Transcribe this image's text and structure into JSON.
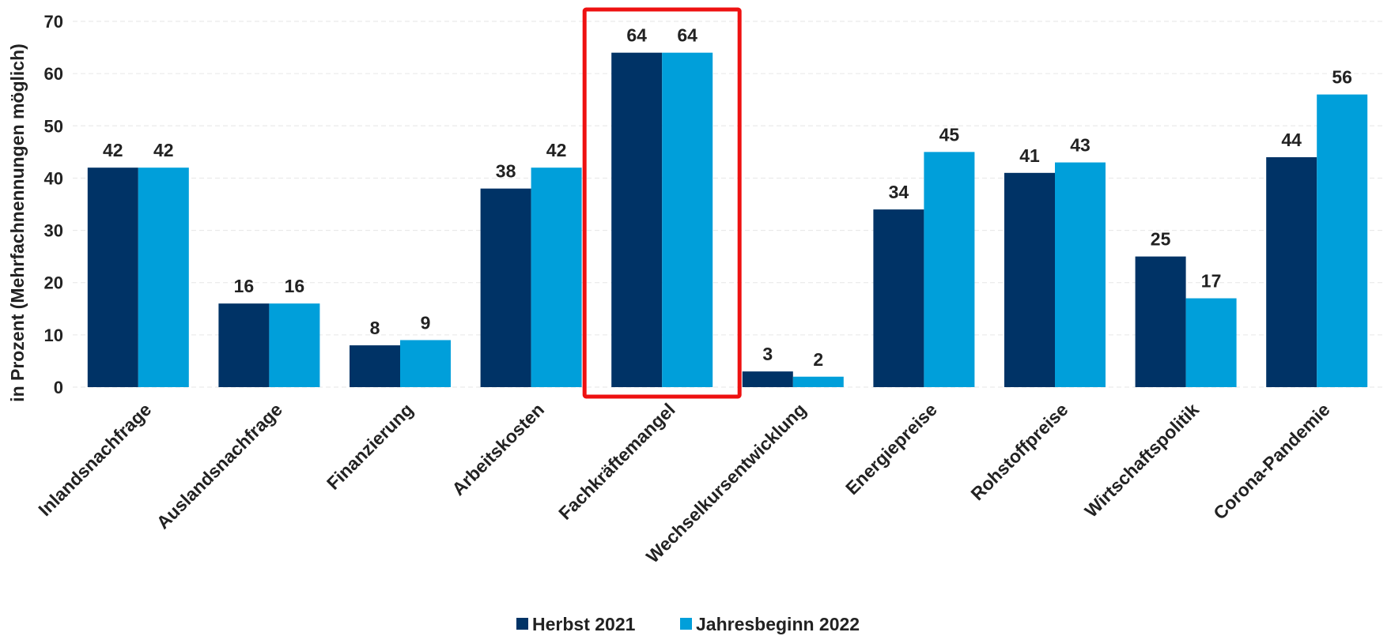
{
  "chart_data": {
    "type": "bar",
    "title": "",
    "xlabel": "",
    "ylabel": "in Prozent (Mehrfachnennungen möglich)",
    "ylim": [
      0,
      70
    ],
    "yticks": [
      0,
      10,
      20,
      30,
      40,
      50,
      60,
      70
    ],
    "grid": true,
    "legend_position": "bottom",
    "categories": [
      "Inlandsnachfrage",
      "Auslandsnachfrage",
      "Finanzierung",
      "Arbeitskosten",
      "Fachkräftemangel",
      "Wechselkursentwicklung",
      "Energiepreise",
      "Rohstoffpreise",
      "Wirtschaftspolitik",
      "Corona-Pandemie"
    ],
    "series": [
      {
        "name": "Herbst 2021",
        "color": "#003366",
        "values": [
          42,
          16,
          8,
          38,
          64,
          3,
          34,
          41,
          25,
          44
        ]
      },
      {
        "name": "Jahresbeginn 2022",
        "color": "#009fda",
        "values": [
          42,
          16,
          9,
          42,
          64,
          2,
          45,
          43,
          17,
          56
        ]
      }
    ],
    "highlight": {
      "category": "Fachkräftemangel",
      "color": "#ee1111"
    }
  }
}
